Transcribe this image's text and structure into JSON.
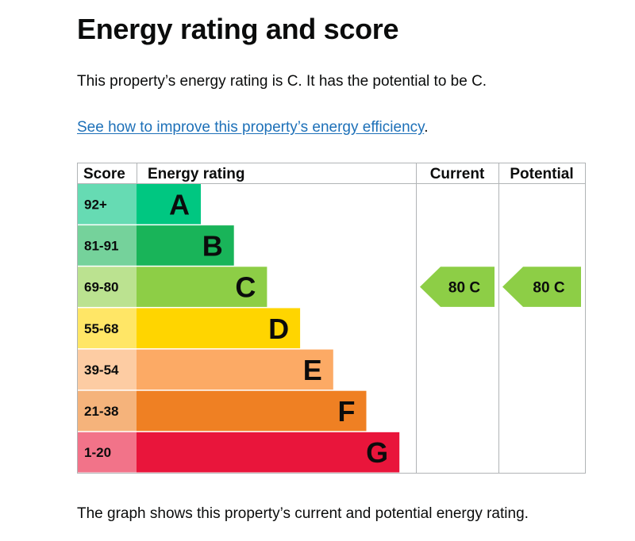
{
  "page": {
    "title": "Energy rating and score",
    "summary": "This property’s energy rating is C. It has the potential to be C.",
    "improve_link": "See how to improve this property’s energy efficiency",
    "improve_suffix": ".",
    "footnote": "The graph shows this property’s current and potential energy rating."
  },
  "chart_data": {
    "type": "bar",
    "headers": {
      "score": "Score",
      "rating": "Energy rating",
      "current": "Current",
      "potential": "Potential"
    },
    "bands": [
      {
        "letter": "A",
        "score_range": "92+",
        "color": "#00c781",
        "score_bg": "#66dbb3"
      },
      {
        "letter": "B",
        "score_range": "81-91",
        "color": "#19b459",
        "score_bg": "#75d29b"
      },
      {
        "letter": "C",
        "score_range": "69-80",
        "color": "#8dce46",
        "score_bg": "#bbe290"
      },
      {
        "letter": "D",
        "score_range": "55-68",
        "color": "#ffd500",
        "score_bg": "#ffe666"
      },
      {
        "letter": "E",
        "score_range": "39-54",
        "color": "#fcaa65",
        "score_bg": "#fdcca3"
      },
      {
        "letter": "F",
        "score_range": "21-38",
        "color": "#ef8023",
        "score_bg": "#f5b37b"
      },
      {
        "letter": "G",
        "score_range": "1-20",
        "color": "#e9153b",
        "score_bg": "#f27389"
      }
    ],
    "current": {
      "score": 80,
      "rating": "C",
      "label": "80  C"
    },
    "potential": {
      "score": 80,
      "rating": "C",
      "label": "80  C"
    }
  }
}
